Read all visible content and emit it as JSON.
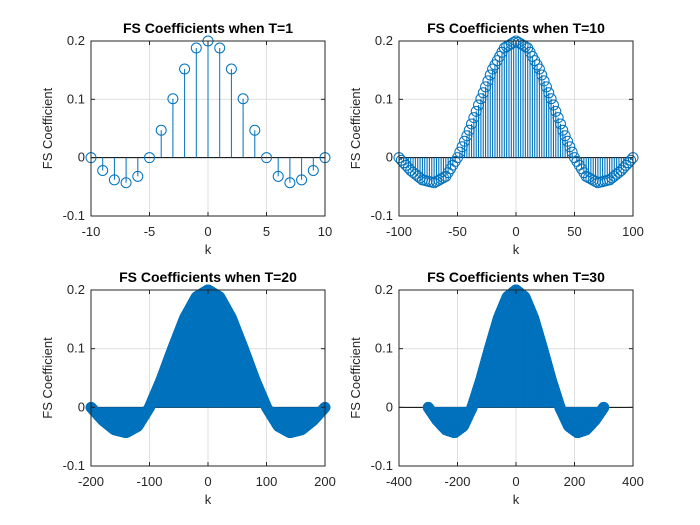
{
  "colors": {
    "stem": "#0072BD",
    "axis": "#262626",
    "grid": "#dfdfdf"
  },
  "chart_data": [
    {
      "type": "stem",
      "title": "FS Coefficients when T=1",
      "xlabel": "k",
      "ylabel": "FS Coefficient",
      "xlim": [
        -10,
        10
      ],
      "ylim": [
        -0.1,
        0.2
      ],
      "xticks": [
        "-10",
        "-5",
        "0",
        "5",
        "10"
      ],
      "yticks": [
        "-0.1",
        "0",
        "0.1",
        "0.2"
      ],
      "grid": true,
      "series": [
        {
          "x": [
            -10,
            -9,
            -8,
            -7,
            -6,
            -5,
            -4,
            -3,
            -2,
            -1,
            0,
            1,
            2,
            3,
            4,
            5,
            6,
            7,
            8,
            9,
            10
          ],
          "y": [
            0.0,
            -0.022,
            -0.038,
            -0.043,
            -0.032,
            0.0,
            0.047,
            0.101,
            0.152,
            0.188,
            0.2,
            0.188,
            0.152,
            0.101,
            0.047,
            0.0,
            -0.032,
            -0.043,
            -0.038,
            -0.022,
            0.0
          ]
        }
      ]
    },
    {
      "type": "stem",
      "title": "FS Coefficients when T=10",
      "xlabel": "k",
      "ylabel": "FS Coefficient",
      "xlim": [
        -100,
        100
      ],
      "ylim": [
        -0.1,
        0.2
      ],
      "xticks": [
        "-100",
        "-50",
        "0",
        "50",
        "100"
      ],
      "yticks": [
        "-0.1",
        "0",
        "0.1",
        "0.2"
      ],
      "grid": true,
      "series": [
        {
          "x": [
            -100,
            -90,
            -80,
            -70,
            -60,
            -50,
            -40,
            -30,
            -20,
            -10,
            0,
            10,
            20,
            30,
            40,
            50,
            60,
            70,
            80,
            90,
            100
          ],
          "y": [
            0.0,
            -0.022,
            -0.038,
            -0.043,
            -0.032,
            0.0,
            0.047,
            0.101,
            0.152,
            0.188,
            0.2,
            0.188,
            0.152,
            0.101,
            0.047,
            0.0,
            -0.032,
            -0.043,
            -0.038,
            -0.022,
            0.0
          ]
        }
      ]
    },
    {
      "type": "stem",
      "title": "FS Coefficients when T=20",
      "xlabel": "k",
      "ylabel": "FS Coefficient",
      "xlim": [
        -200,
        200
      ],
      "ylim": [
        -0.1,
        0.2
      ],
      "xticks": [
        "-200",
        "-100",
        "0",
        "100",
        "200"
      ],
      "yticks": [
        "-0.1",
        "0",
        "0.1",
        "0.2"
      ],
      "grid": true,
      "series": [
        {
          "x": [
            -200,
            -180,
            -160,
            -140,
            -120,
            -100,
            -80,
            -60,
            -40,
            -20,
            0,
            20,
            40,
            60,
            80,
            100,
            120,
            140,
            160,
            180,
            200
          ],
          "y": [
            0.0,
            -0.022,
            -0.038,
            -0.043,
            -0.032,
            0.0,
            0.047,
            0.101,
            0.152,
            0.188,
            0.2,
            0.188,
            0.152,
            0.101,
            0.047,
            0.0,
            -0.032,
            -0.043,
            -0.038,
            -0.022,
            0.0
          ]
        }
      ]
    },
    {
      "type": "stem",
      "title": "FS Coefficients when T=30",
      "xlabel": "k",
      "ylabel": "FS Coefficient",
      "xlim": [
        -400,
        400
      ],
      "ylim": [
        -0.1,
        0.2
      ],
      "xticks": [
        "-400",
        "-200",
        "0",
        "200",
        "400"
      ],
      "yticks": [
        "-0.1",
        "0",
        "0.1",
        "0.2"
      ],
      "grid": true,
      "series": [
        {
          "x": [
            -300,
            -270,
            -240,
            -210,
            -180,
            -150,
            -120,
            -90,
            -60,
            -30,
            0,
            30,
            60,
            90,
            120,
            150,
            180,
            210,
            240,
            270,
            300
          ],
          "y": [
            0.0,
            -0.022,
            -0.038,
            -0.043,
            -0.032,
            0.0,
            0.047,
            0.101,
            0.152,
            0.188,
            0.2,
            0.188,
            0.152,
            0.101,
            0.047,
            0.0,
            -0.032,
            -0.043,
            -0.038,
            -0.022,
            0.0
          ]
        }
      ]
    }
  ]
}
